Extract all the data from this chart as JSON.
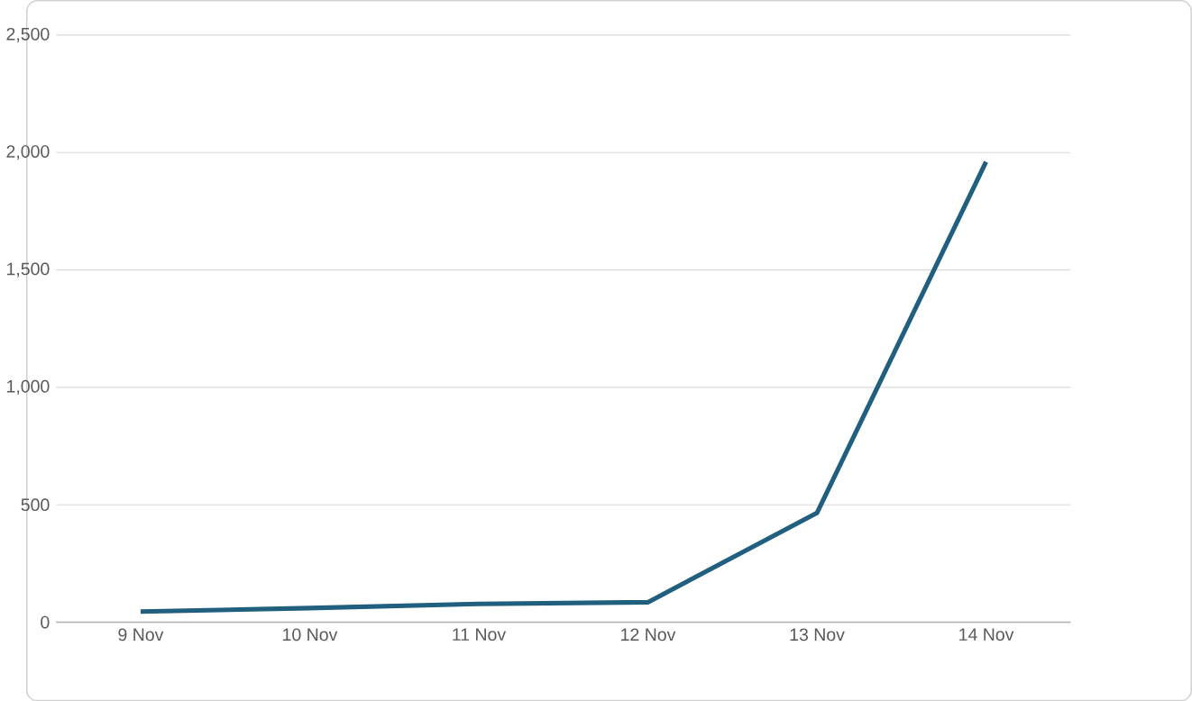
{
  "chart_data": {
    "type": "line",
    "categories": [
      "9 Nov",
      "10 Nov",
      "11 Nov",
      "12 Nov",
      "13 Nov",
      "14 Nov"
    ],
    "series": [
      {
        "color": "#215f7f",
        "values": [
          45,
          60,
          78,
          85,
          465,
          1960
        ]
      }
    ],
    "ylim": [
      0,
      2500
    ],
    "yticks": [
      {
        "value": 0,
        "label": "0"
      },
      {
        "value": 500,
        "label": "500"
      },
      {
        "value": 1000,
        "label": "1,000"
      },
      {
        "value": 1500,
        "label": "1,500"
      },
      {
        "value": 2000,
        "label": "2,000"
      },
      {
        "value": 2500,
        "label": "2,500"
      }
    ],
    "grid": "y",
    "line_style": "solid",
    "marker": "none"
  }
}
